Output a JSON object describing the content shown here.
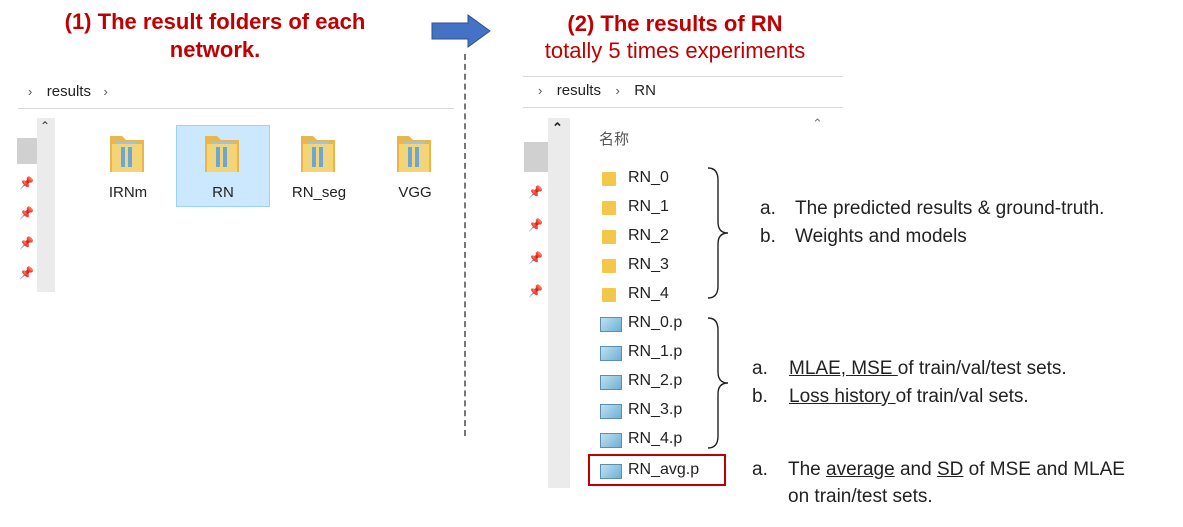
{
  "left_panel": {
    "title": "(1) The result folders of each network.",
    "breadcrumb": [
      "results"
    ],
    "folders": [
      {
        "label": "IRNm",
        "selected": false
      },
      {
        "label": "RN",
        "selected": true
      },
      {
        "label": "RN_seg",
        "selected": false
      },
      {
        "label": "VGG",
        "selected": false
      }
    ]
  },
  "right_panel": {
    "title": "(2) The results of RN",
    "subtitle": "totally 5 times experiments",
    "breadcrumb": [
      "results",
      "RN"
    ],
    "column_header": "名称",
    "folders": [
      "RN_0",
      "RN_1",
      "RN_2",
      "RN_3",
      "RN_4"
    ],
    "files": [
      "RN_0.p",
      "RN_1.p",
      "RN_2.p",
      "RN_3.p",
      "RN_4.p"
    ],
    "avg_file": "RN_avg.p"
  },
  "notes": {
    "folders": [
      {
        "marker": "a.",
        "text": "The predicted results & ground-truth."
      },
      {
        "marker": "b.",
        "text": "Weights and models"
      }
    ],
    "files": [
      {
        "marker": "a.",
        "underlined": "MLAE, MSE ",
        "text": "of train/val/test sets."
      },
      {
        "marker": "b.",
        "underlined": "Loss history ",
        "text": "of train/val sets."
      }
    ],
    "avg": {
      "marker": "a.",
      "t1": "The ",
      "u1": "average",
      "t2": " and ",
      "u2": "SD",
      "t3": " of MSE and MLAE",
      "line2": "on train/test sets."
    }
  },
  "colors": {
    "title": "#c00000",
    "arrow": "#4472c4",
    "selection": "#cce8ff",
    "highlight_box": "#c00000"
  }
}
